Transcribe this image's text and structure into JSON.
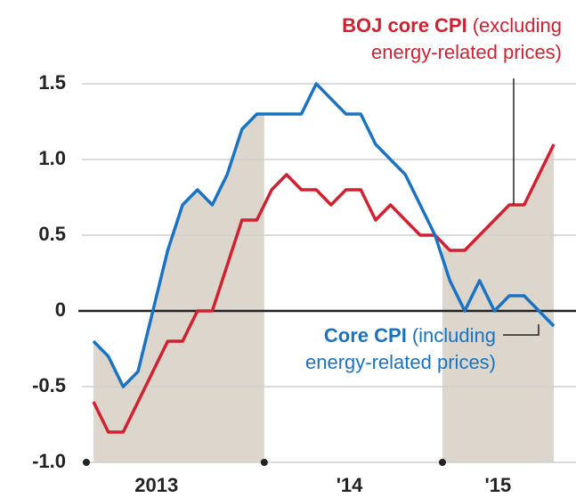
{
  "chart_data": {
    "type": "line",
    "categories": [
      null,
      null,
      null,
      null,
      "2013",
      null,
      null,
      null,
      null,
      null,
      null,
      null,
      null,
      null,
      null,
      null,
      null,
      "'14",
      null,
      null,
      null,
      null,
      null,
      null,
      null,
      null,
      null,
      "'15",
      null,
      null,
      null,
      null
    ],
    "series": [
      {
        "name": "BOJ core CPI",
        "note_lines": [
          "(excluding",
          "energy-related prices)"
        ],
        "color": "#d1202f",
        "values": [
          -0.6,
          -0.8,
          -0.8,
          -0.6,
          -0.4,
          -0.2,
          -0.2,
          0.0,
          0.0,
          0.3,
          0.6,
          0.6,
          0.8,
          0.9,
          0.8,
          0.8,
          0.7,
          0.8,
          0.8,
          0.6,
          0.7,
          0.6,
          0.5,
          0.5,
          0.4,
          0.4,
          0.5,
          0.6,
          0.7,
          0.7,
          0.9,
          1.1
        ]
      },
      {
        "name": "Core CPI",
        "note_lines": [
          "(including",
          "energy-related prices)"
        ],
        "color": "#1a73c2",
        "values": [
          -0.2,
          -0.3,
          -0.5,
          -0.4,
          0.0,
          0.4,
          0.7,
          0.8,
          0.7,
          0.9,
          1.2,
          1.3,
          1.3,
          1.3,
          1.3,
          1.5,
          1.4,
          1.3,
          1.3,
          1.1,
          1.0,
          0.9,
          0.7,
          0.5,
          0.2,
          0.0,
          0.2,
          0.0,
          0.1,
          0.1,
          0.0,
          -0.1
        ]
      }
    ],
    "ylim": [
      -1.0,
      1.5
    ],
    "yticks": [
      {
        "value": -1.0,
        "label": "-1.0"
      },
      {
        "value": -0.5,
        "label": "-0.5"
      },
      0,
      {
        "value": 0.5,
        "label": "0.5"
      },
      {
        "value": 1.0,
        "label": "1.0"
      },
      {
        "value": 1.5,
        "label": "1.5"
      }
    ],
    "grid": true,
    "shaded": [
      [
        0,
        11
      ],
      [
        24,
        31
      ]
    ],
    "shade_color": "#dcd6cc"
  }
}
